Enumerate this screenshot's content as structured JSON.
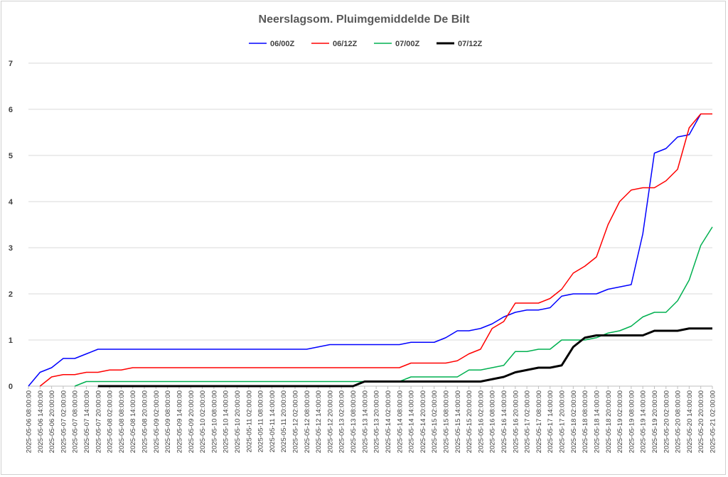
{
  "chart_data": {
    "type": "line",
    "title": "Neerslagsom. Pluimgemiddelde De Bilt",
    "xlabel": "",
    "ylabel": "",
    "ylim": [
      0,
      7
    ],
    "yticks": [
      "0",
      "1",
      "2",
      "3",
      "4",
      "5",
      "6",
      "7"
    ],
    "grid": true,
    "legend_position": "top",
    "x": [
      "2025-05-06 08:00:00",
      "2025-05-06 14:00:00",
      "2025-05-06 20:00:00",
      "2025-05-07 02:00:00",
      "2025-05-07 08:00:00",
      "2025-05-07 14:00:00",
      "2025-05-07 20:00:00",
      "2025-05-08 02:00:00",
      "2025-05-08 08:00:00",
      "2025-05-08 14:00:00",
      "2025-05-08 20:00:00",
      "2025-05-09 02:00:00",
      "2025-05-09 08:00:00",
      "2025-05-09 14:00:00",
      "2025-05-09 20:00:00",
      "2025-05-10 02:00:00",
      "2025-05-10 08:00:00",
      "2025-05-10 14:00:00",
      "2025-05-10 20:00:00",
      "2025-05-11 02:00:00",
      "2025-05-11 08:00:00",
      "2025-05-11 14:00:00",
      "2025-05-11 20:00:00",
      "2025-05-12 02:00:00",
      "2025-05-12 08:00:00",
      "2025-05-12 14:00:00",
      "2025-05-12 20:00:00",
      "2025-05-13 02:00:00",
      "2025-05-13 08:00:00",
      "2025-05-13 14:00:00",
      "2025-05-13 20:00:00",
      "2025-05-14 02:00:00",
      "2025-05-14 08:00:00",
      "2025-05-14 14:00:00",
      "2025-05-14 20:00:00",
      "2025-05-15 02:00:00",
      "2025-05-15 08:00:00",
      "2025-05-15 14:00:00",
      "2025-05-15 20:00:00",
      "2025-05-16 02:00:00",
      "2025-05-16 08:00:00",
      "2025-05-16 14:00:00",
      "2025-05-16 20:00:00",
      "2025-05-17 02:00:00",
      "2025-05-17 08:00:00",
      "2025-05-17 14:00:00",
      "2025-05-17 20:00:00",
      "2025-05-18 02:00:00",
      "2025-05-18 08:00:00",
      "2025-05-18 14:00:00",
      "2025-05-18 20:00:00",
      "2025-05-19 02:00:00",
      "2025-05-19 08:00:00",
      "2025-05-19 14:00:00",
      "2025-05-19 20:00:00",
      "2025-05-20 02:00:00",
      "2025-05-20 08:00:00",
      "2025-05-20 14:00:00",
      "2025-05-20 20:00:00",
      "2025-05-21 02:00:00"
    ],
    "series": [
      {
        "name": "06/00Z",
        "color": "#0000ff",
        "width": 1.5,
        "values": [
          0,
          0.3,
          0.4,
          0.6,
          0.6,
          0.7,
          0.8,
          0.8,
          0.8,
          0.8,
          0.8,
          0.8,
          0.8,
          0.8,
          0.8,
          0.8,
          0.8,
          0.8,
          0.8,
          0.8,
          0.8,
          0.8,
          0.8,
          0.8,
          0.8,
          0.85,
          0.9,
          0.9,
          0.9,
          0.9,
          0.9,
          0.9,
          0.9,
          0.95,
          0.95,
          0.95,
          1.05,
          1.2,
          1.2,
          1.25,
          1.35,
          1.5,
          1.6,
          1.65,
          1.65,
          1.7,
          1.95,
          2.0,
          2.0,
          2.0,
          2.1,
          2.15,
          2.2,
          3.3,
          5.05,
          5.15,
          5.4,
          5.45,
          5.9,
          null
        ]
      },
      {
        "name": "06/12Z",
        "color": "#ff0000",
        "width": 1.5,
        "values": [
          null,
          0,
          0.2,
          0.25,
          0.25,
          0.3,
          0.3,
          0.35,
          0.35,
          0.4,
          0.4,
          0.4,
          0.4,
          0.4,
          0.4,
          0.4,
          0.4,
          0.4,
          0.4,
          0.4,
          0.4,
          0.4,
          0.4,
          0.4,
          0.4,
          0.4,
          0.4,
          0.4,
          0.4,
          0.4,
          0.4,
          0.4,
          0.4,
          0.5,
          0.5,
          0.5,
          0.5,
          0.55,
          0.7,
          0.8,
          1.25,
          1.4,
          1.8,
          1.8,
          1.8,
          1.9,
          2.1,
          2.45,
          2.6,
          2.8,
          3.5,
          4.0,
          4.25,
          4.3,
          4.3,
          4.45,
          4.7,
          5.6,
          5.9,
          5.9
        ]
      },
      {
        "name": "07/00Z",
        "color": "#00b050",
        "width": 1.5,
        "values": [
          null,
          null,
          null,
          null,
          0,
          0.1,
          0.1,
          0.1,
          0.1,
          0.1,
          0.1,
          0.1,
          0.1,
          0.1,
          0.1,
          0.1,
          0.1,
          0.1,
          0.1,
          0.1,
          0.1,
          0.1,
          0.1,
          0.1,
          0.1,
          0.1,
          0.1,
          0.1,
          0.1,
          0.1,
          0.1,
          0.1,
          0.1,
          0.2,
          0.2,
          0.2,
          0.2,
          0.2,
          0.35,
          0.35,
          0.4,
          0.45,
          0.75,
          0.75,
          0.8,
          0.8,
          1.0,
          1.0,
          1.0,
          1.05,
          1.15,
          1.2,
          1.3,
          1.5,
          1.6,
          1.6,
          1.85,
          2.3,
          3.05,
          3.45
        ]
      },
      {
        "name": "07/12Z",
        "color": "#000000",
        "width": 3,
        "values": [
          null,
          null,
          null,
          null,
          null,
          null,
          0,
          0,
          0,
          0,
          0,
          0,
          0,
          0,
          0,
          0,
          0,
          0,
          0,
          0,
          0,
          0,
          0,
          0,
          0,
          0,
          0,
          0,
          0,
          0.1,
          0.1,
          0.1,
          0.1,
          0.1,
          0.1,
          0.1,
          0.1,
          0.1,
          0.1,
          0.1,
          0.15,
          0.2,
          0.3,
          0.35,
          0.4,
          0.4,
          0.45,
          0.85,
          1.05,
          1.1,
          1.1,
          1.1,
          1.1,
          1.1,
          1.2,
          1.2,
          1.2,
          1.25,
          1.25,
          1.25
        ]
      }
    ]
  }
}
